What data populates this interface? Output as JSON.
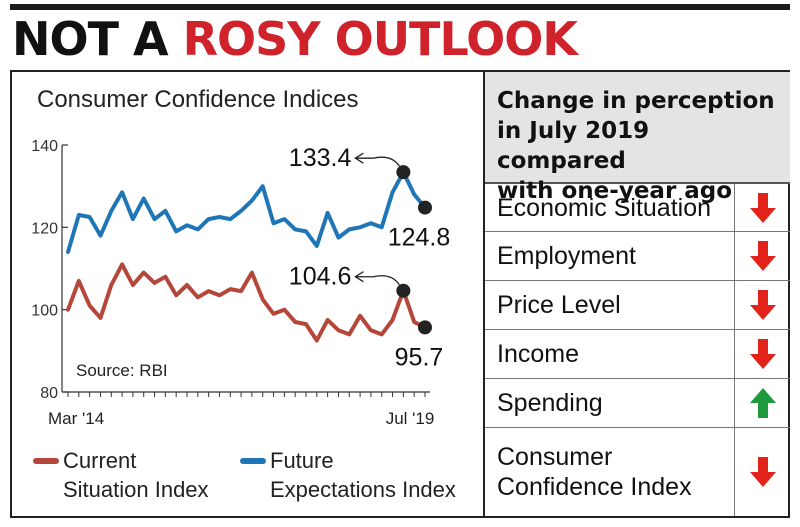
{
  "headline": {
    "part1": "NOT A ",
    "part2": "ROSY OUTLOOK"
  },
  "chart_data": {
    "type": "line",
    "title": "Consumer Confidence Indices",
    "source": "Source: RBI",
    "xlabels": {
      "start": "Mar '14",
      "end": "Jul '19"
    },
    "ylim": [
      80,
      140
    ],
    "yticks": [
      80,
      100,
      120,
      140
    ],
    "series": [
      {
        "name": "Current Situation Index",
        "legend_label": [
          "Current",
          "Situation Index"
        ],
        "color": "#b5473a",
        "values": [
          100.0,
          107.0,
          101.0,
          98.0,
          106.0,
          111.0,
          106.0,
          109.0,
          106.5,
          108.0,
          103.5,
          106.0,
          103.0,
          104.5,
          103.5,
          105.0,
          104.5,
          109.0,
          102.5,
          99.0,
          100.0,
          97.0,
          96.5,
          92.5,
          97.5,
          95.0,
          94.0,
          98.5,
          95.0,
          94.0,
          97.5,
          104.6,
          97.0,
          95.7
        ]
      },
      {
        "name": "Future Expectations Index",
        "legend_label": [
          "Future",
          "Expectations Index"
        ],
        "color": "#1f76b7",
        "values": [
          114.0,
          123.0,
          122.5,
          118.0,
          124.0,
          128.5,
          122.0,
          127.0,
          122.0,
          124.0,
          119.0,
          120.5,
          119.5,
          122.0,
          122.5,
          122.0,
          124.0,
          126.5,
          130.0,
          121.0,
          122.0,
          119.5,
          119.0,
          115.5,
          123.5,
          117.5,
          119.5,
          120.0,
          121.0,
          120.0,
          128.5,
          133.4,
          128.0,
          124.8
        ]
      }
    ],
    "annotations": [
      {
        "series": 1,
        "index": 31,
        "text": "133.4"
      },
      {
        "series": 1,
        "index": 33,
        "text": "124.8"
      },
      {
        "series": 0,
        "index": 31,
        "text": "104.6"
      },
      {
        "series": 0,
        "index": 33,
        "text": "95.7"
      }
    ]
  },
  "table": {
    "header": [
      "Change in perception",
      "in July 2019 compared",
      "with one-year ago"
    ],
    "up_color": "#1e9a3c",
    "down_color": "#e2231a",
    "rows": [
      {
        "label": [
          "Economic Situation"
        ],
        "direction": "down"
      },
      {
        "label": [
          "Employment"
        ],
        "direction": "down"
      },
      {
        "label": [
          "Price Level"
        ],
        "direction": "down"
      },
      {
        "label": [
          "Income"
        ],
        "direction": "down"
      },
      {
        "label": [
          "Spending"
        ],
        "direction": "up"
      },
      {
        "label": [
          "Consumer",
          "Confidence Index"
        ],
        "direction": "down"
      }
    ]
  }
}
